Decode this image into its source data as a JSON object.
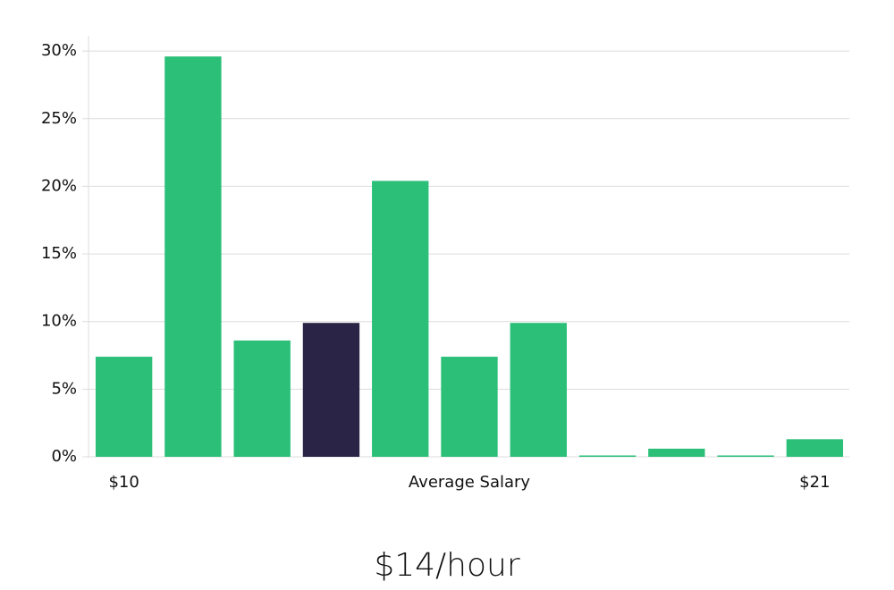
{
  "chart_data": {
    "type": "bar",
    "categories": [
      "$10",
      null,
      null,
      null,
      null,
      null,
      null,
      null,
      null,
      null,
      "$21"
    ],
    "values": [
      7.4,
      29.6,
      8.6,
      9.9,
      20.4,
      7.4,
      9.9,
      0.1,
      0.6,
      0.1,
      1.3
    ],
    "colors": [
      "#2bbf78",
      "#2bbf78",
      "#2bbf78",
      "#2a2546",
      "#2bbf78",
      "#2bbf78",
      "#2bbf78",
      "#2bbf78",
      "#2bbf78",
      "#2bbf78",
      "#2bbf78"
    ],
    "x_label": "Average Salary",
    "annotation": "$14/hour",
    "ylim": [
      0,
      31
    ],
    "yticks": [
      {
        "value": 0,
        "label": "0%"
      },
      {
        "value": 5,
        "label": "5%"
      },
      {
        "value": 10,
        "label": "10%"
      },
      {
        "value": 15,
        "label": "15%"
      },
      {
        "value": 20,
        "label": "20%"
      },
      {
        "value": 25,
        "label": "25%"
      },
      {
        "value": 30,
        "label": "30%"
      }
    ],
    "grid": true
  }
}
